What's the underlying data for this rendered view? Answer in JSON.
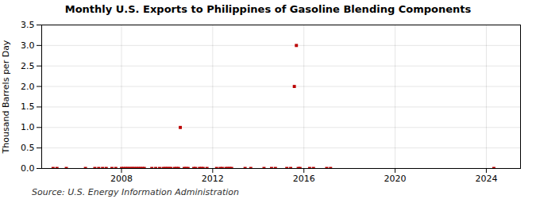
{
  "chart_data": {
    "type": "scatter",
    "title": "Monthly U.S. Exports to Philippines of Gasoline Blending Components",
    "ylabel": "Thousand Barrels per Day",
    "source": "Source: U.S. Energy Information Administration",
    "x": [
      2005.0,
      2005.17,
      2005.58,
      2006.42,
      2006.83,
      2007.0,
      2007.17,
      2007.33,
      2007.58,
      2007.75,
      2008.0,
      2008.08,
      2008.17,
      2008.25,
      2008.33,
      2008.42,
      2008.5,
      2008.58,
      2008.67,
      2008.75,
      2008.83,
      2008.92,
      2009.0,
      2009.33,
      2009.5,
      2009.67,
      2009.83,
      2009.92,
      2010.0,
      2010.08,
      2010.17,
      2010.33,
      2010.42,
      2010.5,
      2010.58,
      2010.75,
      2010.83,
      2010.92,
      2011.17,
      2011.25,
      2011.42,
      2011.5,
      2011.58,
      2011.75,
      2012.17,
      2012.33,
      2012.42,
      2012.58,
      2012.67,
      2012.75,
      2012.83,
      2013.42,
      2013.67,
      2014.25,
      2014.58,
      2014.75,
      2015.25,
      2015.42,
      2015.58,
      2015.67,
      2015.75,
      2015.83,
      2016.25,
      2016.42,
      2017.0,
      2017.17,
      2024.33
    ],
    "values": [
      0.0,
      0.0,
      0.0,
      0.0,
      0.0,
      0.0,
      0.0,
      0.0,
      0.0,
      0.0,
      0.0,
      0.0,
      0.0,
      0.0,
      0.0,
      0.0,
      0.0,
      0.0,
      0.0,
      0.0,
      0.0,
      0.0,
      0.0,
      0.0,
      0.0,
      0.0,
      0.0,
      0.0,
      0.0,
      0.0,
      0.0,
      0.0,
      0.0,
      0.0,
      1.0,
      0.0,
      0.0,
      0.0,
      0.0,
      0.0,
      0.0,
      0.0,
      0.0,
      0.0,
      0.0,
      0.0,
      0.0,
      0.0,
      0.0,
      0.0,
      0.0,
      0.0,
      0.0,
      0.0,
      0.0,
      0.0,
      0.0,
      0.0,
      2.0,
      3.0,
      0.0,
      0.0,
      0.0,
      0.0,
      0.0,
      0.0,
      0.0
    ],
    "color": "#bb0000",
    "marker": "square",
    "xlim": [
      2004.5,
      2025.5
    ],
    "xticks": [
      2008,
      2012,
      2016,
      2020,
      2024
    ],
    "ylim": [
      0.0,
      3.5
    ],
    "yticks": [
      {
        "value": 0.0,
        "label": "0.0"
      },
      0.5,
      {
        "value": 1.0,
        "label": "1.0"
      },
      1.5,
      {
        "value": 2.0,
        "label": "2.0"
      },
      2.5,
      {
        "value": 3.0,
        "label": "3.0"
      },
      3.5
    ],
    "grid": true
  }
}
